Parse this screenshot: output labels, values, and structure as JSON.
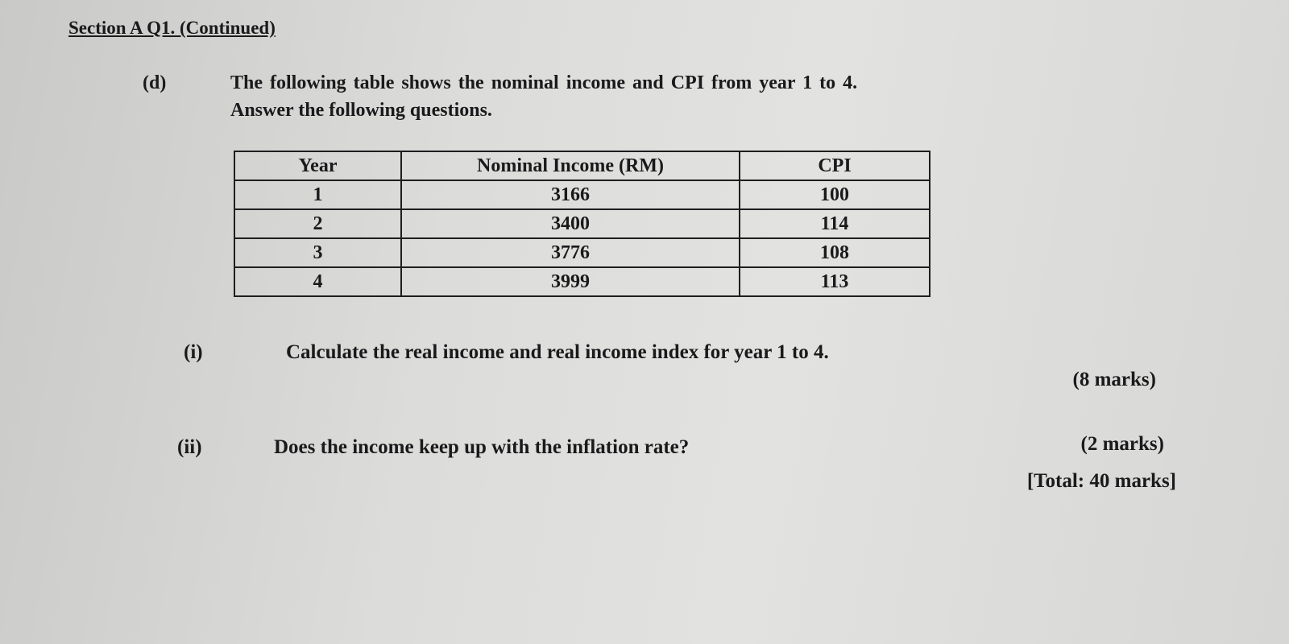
{
  "heading": "Section A Q1. (Continued)",
  "part_d": {
    "label": "(d)",
    "line1": "The following table shows the nominal income and CPI from year 1 to 4.",
    "line2": "Answer the following questions."
  },
  "table": {
    "headers": [
      "Year",
      "Nominal Income (RM)",
      "CPI"
    ],
    "rows": [
      [
        "1",
        "3166",
        "100"
      ],
      [
        "2",
        "3400",
        "114"
      ],
      [
        "3",
        "3776",
        "108"
      ],
      [
        "4",
        "3999",
        "113"
      ]
    ]
  },
  "questions": [
    {
      "label": "(i)",
      "text": "Calculate the real income and real income index for year 1 to 4.",
      "marks": "(8 marks)"
    },
    {
      "label": "(ii)",
      "text": "Does the income keep up with the inflation rate?",
      "marks": "(2 marks)"
    }
  ],
  "total": "[Total: 40 marks]"
}
